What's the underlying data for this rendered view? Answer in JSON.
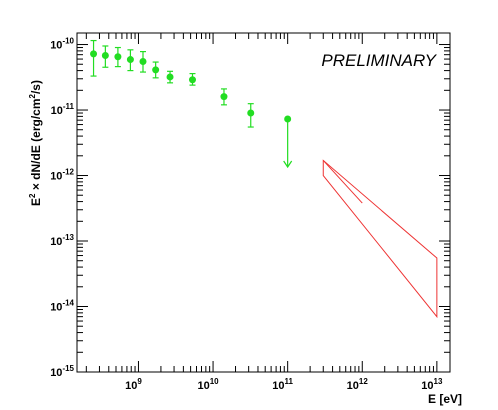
{
  "chart_data": {
    "type": "scatter",
    "annotation": "PRELIMINARY",
    "xlabel": "E [eV]",
    "ylabel": "E2 × dN/dE (erg/cm2/s)",
    "ylabel_parts": {
      "e": "E",
      "sup1": "2",
      "mid": " × dN/dE (erg/cm",
      "sup2": "2",
      "end": "/s)"
    },
    "x_scale": "log",
    "y_scale": "log",
    "xlim": [
      150000000,
      15000000000000
    ],
    "ylim": [
      1e-15,
      1.5e-10
    ],
    "x_major_ticks": [
      {
        "value": 1000000000,
        "base": "10",
        "exp": "9"
      },
      {
        "value": 10000000000,
        "base": "10",
        "exp": "10"
      },
      {
        "value": 100000000000,
        "base": "10",
        "exp": "11"
      },
      {
        "value": 1000000000000,
        "base": "10",
        "exp": "12"
      },
      {
        "value": 10000000000000,
        "base": "10",
        "exp": "13"
      }
    ],
    "y_major_ticks": [
      {
        "value": 1e-10,
        "base": "10",
        "exp": "-10"
      },
      {
        "value": 1e-11,
        "base": "10",
        "exp": "-11"
      },
      {
        "value": 1e-12,
        "base": "10",
        "exp": "-12"
      },
      {
        "value": 1e-13,
        "base": "10",
        "exp": "-13"
      },
      {
        "value": 1e-14,
        "base": "10",
        "exp": "-14"
      },
      {
        "value": 1e-15,
        "base": "10",
        "exp": "-15"
      }
    ],
    "grid": false,
    "series": [
      {
        "kind": "points_with_errors",
        "color": "#22dd22",
        "points": [
          {
            "x": 250000000,
            "y": 7.2e-11,
            "ylo": 3.3e-11,
            "yhi": 1.15e-10
          },
          {
            "x": 360000000,
            "y": 6.8e-11,
            "ylo": 4.5e-11,
            "yhi": 9.5e-11
          },
          {
            "x": 530000000,
            "y": 6.5e-11,
            "ylo": 4.6e-11,
            "yhi": 9e-11
          },
          {
            "x": 780000000,
            "y": 5.9e-11,
            "ylo": 4e-11,
            "yhi": 8.3e-11
          },
          {
            "x": 1150000000,
            "y": 5.5e-11,
            "ylo": 3.8e-11,
            "yhi": 7.8e-11
          },
          {
            "x": 1700000000,
            "y": 4.1e-11,
            "ylo": 3.1e-11,
            "yhi": 5.4e-11
          },
          {
            "x": 2650000000,
            "y": 3.2e-11,
            "ylo": 2.6e-11,
            "yhi": 3.9e-11
          },
          {
            "x": 5300000000,
            "y": 2.9e-11,
            "ylo": 2.4e-11,
            "yhi": 3.6e-11
          },
          {
            "x": 14000000000,
            "y": 1.6e-11,
            "ylo": 1.2e-11,
            "yhi": 2.1e-11
          },
          {
            "x": 32000000000,
            "y": 9e-12,
            "ylo": 5.5e-12,
            "yhi": 1.25e-11
          }
        ]
      },
      {
        "kind": "upper_limit",
        "color": "#22dd22",
        "points": [
          {
            "x": 100000000000,
            "y": 7.3e-12,
            "arrow_to": 1.35e-12
          }
        ]
      },
      {
        "kind": "bowtie",
        "color": "#ee3333",
        "polygon": [
          {
            "x": 300000000000,
            "y": 1.7e-12
          },
          {
            "x": 300000000000,
            "y": 1e-12
          },
          {
            "x": 10000000000000,
            "y": 7e-15
          },
          {
            "x": 10000000000000,
            "y": 5.5e-14
          }
        ],
        "inner_line": [
          {
            "x": 300000000000,
            "y": 1.7e-12
          },
          {
            "x": 1000000000000,
            "y": 3.8e-13
          }
        ]
      }
    ]
  }
}
